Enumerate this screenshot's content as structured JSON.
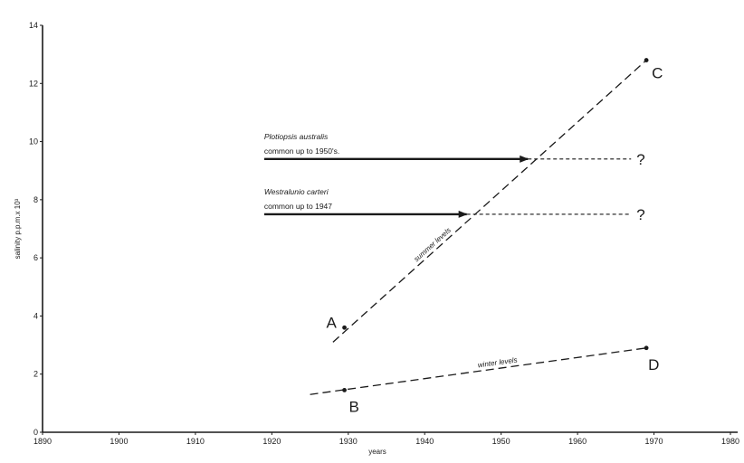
{
  "chart_data": {
    "type": "line",
    "title": "",
    "xlabel": "years",
    "ylabel": "salinity p.p.m.x 10³",
    "xlim": [
      1890,
      1980
    ],
    "ylim": [
      0,
      14
    ],
    "grid": false,
    "x_ticks": [
      "1890",
      "1900",
      "1910",
      "1920",
      "1930",
      "1940",
      "1950",
      "1960",
      "1970",
      "1980"
    ],
    "y_ticks": [
      "0",
      "2",
      "4",
      "6",
      "8",
      "10",
      "12",
      "14"
    ],
    "series": [
      {
        "name": "summer levels",
        "style": "dashed",
        "points": [
          {
            "x": 1928,
            "y": 3.1
          },
          {
            "x": 1969,
            "y": 12.8
          }
        ],
        "markers": [
          {
            "x": 1929.5,
            "y": 3.6,
            "label": "A"
          },
          {
            "x": 1969,
            "y": 12.8,
            "label": "C"
          }
        ]
      },
      {
        "name": "winter levels",
        "style": "dashed",
        "points": [
          {
            "x": 1925,
            "y": 1.3
          },
          {
            "x": 1969,
            "y": 2.9
          }
        ],
        "markers": [
          {
            "x": 1929.5,
            "y": 1.45,
            "label": "B"
          },
          {
            "x": 1969,
            "y": 2.9,
            "label": "D"
          }
        ]
      }
    ],
    "annotations": [
      {
        "species": "Plotiopsis australis",
        "note": "common up to 1950's.",
        "arrow_from": {
          "x": 1919,
          "y": 9.4
        },
        "arrow_to": {
          "x": 1953.5,
          "y": 9.4
        },
        "projection_to": {
          "x": 1967,
          "y": 9.4
        },
        "query": "?"
      },
      {
        "species": "Westralunio carteri",
        "note": "common up to 1947",
        "arrow_from": {
          "x": 1919,
          "y": 7.5
        },
        "arrow_to": {
          "x": 1945.5,
          "y": 7.5
        },
        "projection_to": {
          "x": 1967,
          "y": 7.5
        },
        "query": "?"
      }
    ]
  }
}
